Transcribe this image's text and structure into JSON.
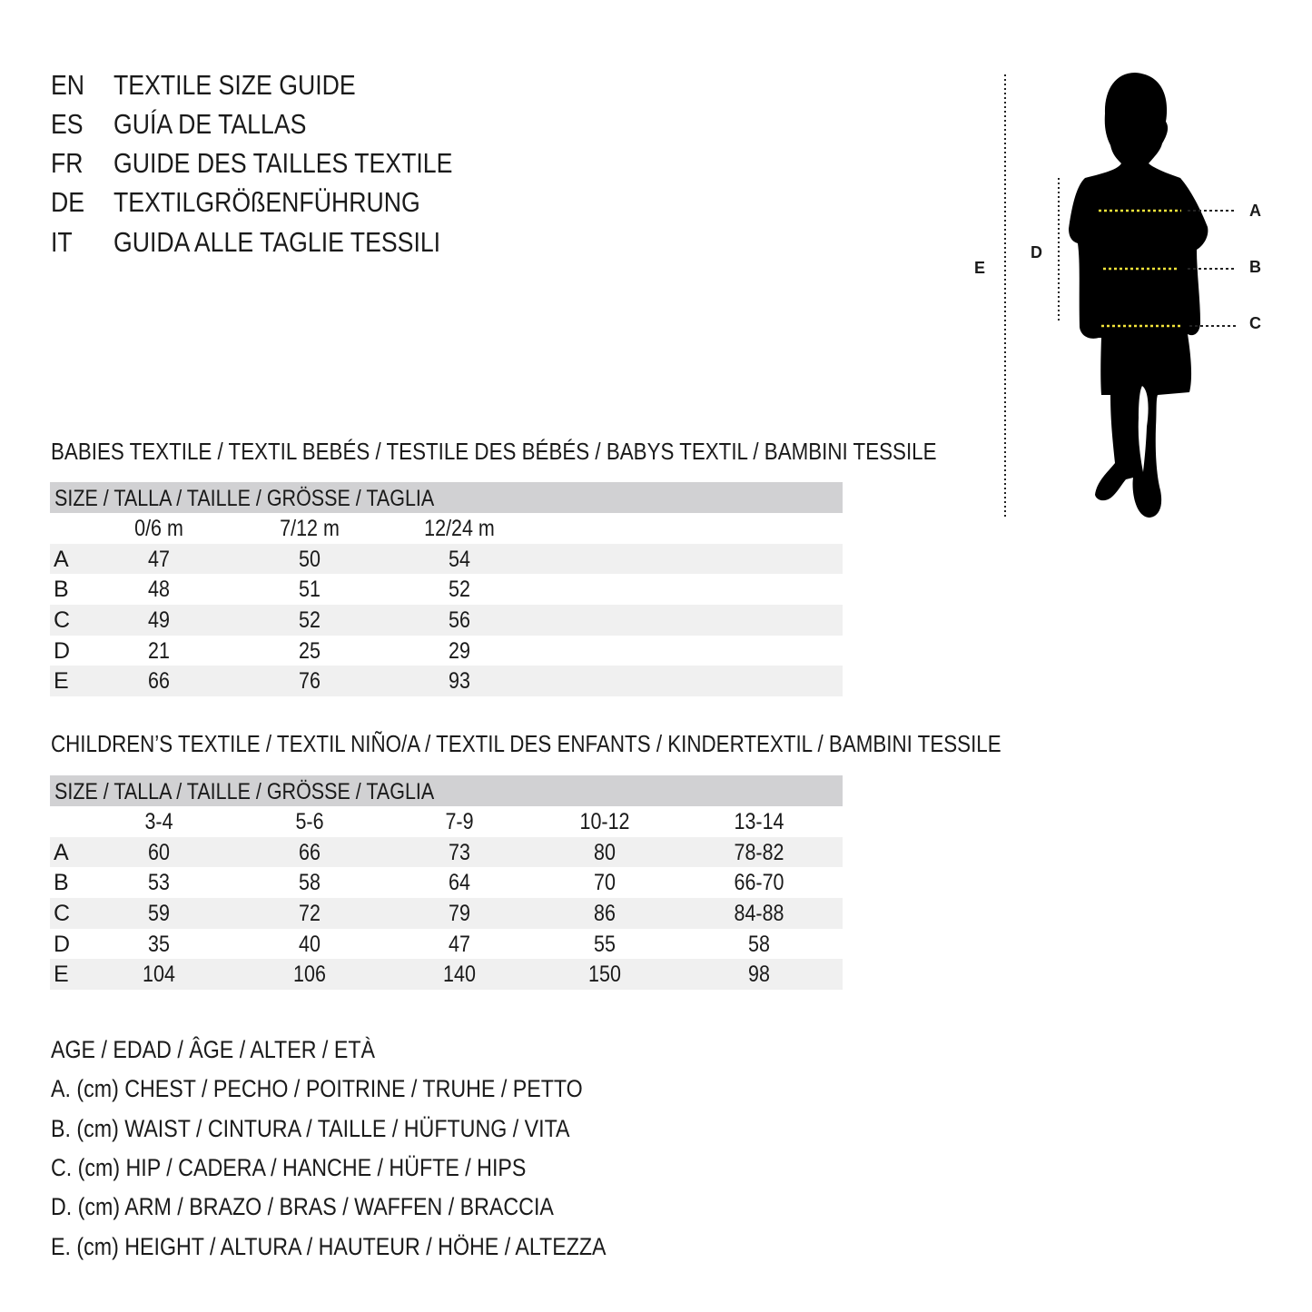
{
  "titles": [
    {
      "code": "EN",
      "text": "TEXTILE SIZE GUIDE"
    },
    {
      "code": "ES",
      "text": "GUÍA DE TALLAS"
    },
    {
      "code": "FR",
      "text": "GUIDE DES TAILLES TEXTILE"
    },
    {
      "code": "DE",
      "text": "TEXTILGRÖßENFÜHRUNG"
    },
    {
      "code": "IT",
      "text": "GUIDA ALLE TAGLIE TESSILI"
    }
  ],
  "figure": {
    "labels": {
      "a": "A",
      "b": "B",
      "c": "C",
      "d": "D",
      "e": "E"
    },
    "measure_color": "#f2e33a"
  },
  "babies": {
    "title": "BABIES TEXTILE / TEXTIL BEBÉS / TESTILE DES BÉBÉS / BABYS TEXTIL / BAMBINI TESSILE",
    "size_header": "SIZE / TALLA / TAILLE / GRÖSSE / TAGLIA",
    "columns": [
      "0/6 m",
      "7/12 m",
      "12/24 m"
    ],
    "rows": [
      {
        "label": "A",
        "values": [
          "47",
          "50",
          "54"
        ]
      },
      {
        "label": "B",
        "values": [
          "48",
          "51",
          "52"
        ]
      },
      {
        "label": "C",
        "values": [
          "49",
          "52",
          "56"
        ]
      },
      {
        "label": "D",
        "values": [
          "21",
          "25",
          "29"
        ]
      },
      {
        "label": "E",
        "values": [
          "66",
          "76",
          "93"
        ]
      }
    ]
  },
  "children": {
    "title": "CHILDREN’S TEXTILE / TEXTIL NIÑO/A / TEXTIL DES ENFANTS / KINDERTEXTIL / BAMBINI TESSILE",
    "size_header": "SIZE / TALLA / TAILLE / GRÖSSE / TAGLIA",
    "columns": [
      "3-4",
      "5-6",
      "7-9",
      "10-12",
      "13-14"
    ],
    "rows": [
      {
        "label": "A",
        "values": [
          "60",
          "66",
          "73",
          "80",
          "78-82"
        ]
      },
      {
        "label": "B",
        "values": [
          "53",
          "58",
          "64",
          "70",
          "66-70"
        ]
      },
      {
        "label": "C",
        "values": [
          "59",
          "72",
          "79",
          "86",
          "84-88"
        ]
      },
      {
        "label": "D",
        "values": [
          "35",
          "40",
          "47",
          "55",
          "58"
        ]
      },
      {
        "label": "E",
        "values": [
          "104",
          "106",
          "140",
          "150",
          "98"
        ]
      }
    ]
  },
  "legend": [
    "AGE / EDAD / ÂGE / ALTER / ETÀ",
    "A. (cm) CHEST / PECHO / POITRINE / TRUHE / PETTO",
    "B. (cm) WAIST / CINTURA / TAILLE / HÜFTUNG / VITA",
    "C. (cm) HIP / CADERA / HANCHE / HÜFTE / HIPS",
    "D. (cm) ARM / BRAZO / BRAS / WAFFEN / BRACCIA",
    "E. (cm) HEIGHT / ALTURA / HAUTEUR / HÖHE / ALTEZZA"
  ]
}
